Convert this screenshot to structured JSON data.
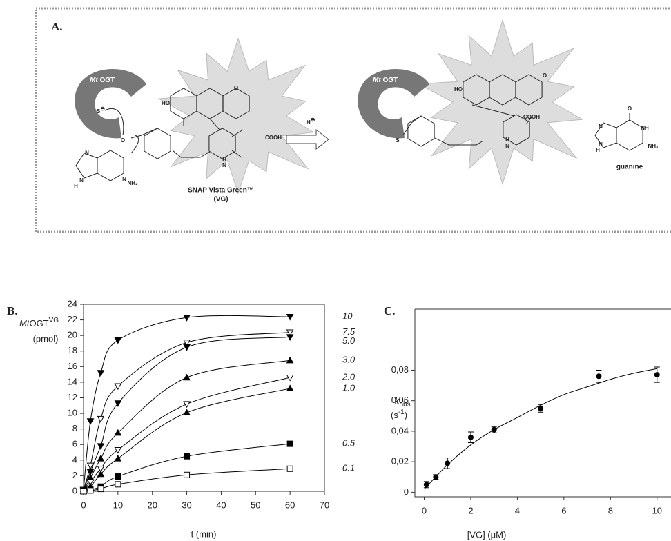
{
  "panel_a": {
    "label": "A.",
    "enzyme_left": {
      "italic": "Mt",
      "text": " OGT"
    },
    "enzyme_right": {
      "italic": "Mt",
      "text": " OGT"
    },
    "thiolate": {
      "text": "S",
      "charge": "⊖"
    },
    "proton": {
      "text": "H",
      "charge": "⊕"
    },
    "substrate_name": "SNAP Vista Green™",
    "substrate_abbr": "(VG)",
    "leaving_group": "guanine",
    "atom_labels": [
      "HO",
      "O",
      "COOH",
      "O",
      "H",
      "N",
      "N",
      "N",
      "N",
      "H",
      "NH₂",
      "HO",
      "O",
      "COOH",
      "S",
      "H",
      "N",
      "O",
      "NH",
      "N",
      "N",
      "H",
      "NH₂"
    ]
  },
  "chart_data": [
    {
      "type": "line",
      "title": "B.",
      "xlabel": "t (min)",
      "ylabel": {
        "italic": "Mt",
        "text": "OGT",
        "sup": "VG",
        "unit": "(pmol)"
      },
      "xlim": [
        0,
        70
      ],
      "xticks": [
        0,
        10,
        20,
        30,
        40,
        50,
        60,
        70
      ],
      "ylim": [
        0,
        24
      ],
      "yticks": [
        0,
        2,
        4,
        6,
        8,
        10,
        12,
        14,
        16,
        18,
        20,
        22,
        24
      ],
      "series": [
        {
          "name": "10",
          "marker": "triangle-down",
          "filled": true,
          "color": "#000000",
          "x": [
            0,
            2,
            5,
            10,
            30,
            60
          ],
          "values": [
            0.2,
            9,
            15.2,
            19.4,
            22.3,
            22.4
          ]
        },
        {
          "name": "7.5",
          "marker": "triangle-down",
          "filled": false,
          "color": "#000000",
          "x": [
            0,
            2,
            5,
            10,
            30,
            60
          ],
          "values": [
            0.2,
            3.3,
            9.3,
            13.5,
            19.1,
            20.4
          ]
        },
        {
          "name": "5.0",
          "marker": "triangle-down",
          "filled": true,
          "color": "#000000",
          "x": [
            0,
            2,
            5,
            10,
            30,
            60
          ],
          "values": [
            0.1,
            2.5,
            5.8,
            11.3,
            18.5,
            19.8
          ]
        },
        {
          "name": "3.0",
          "marker": "triangle-up",
          "filled": true,
          "color": "#000000",
          "x": [
            0,
            2,
            5,
            10,
            30,
            60
          ],
          "values": [
            0.1,
            1.7,
            4.2,
            7.5,
            14.6,
            16.8
          ]
        },
        {
          "name": "2.0",
          "marker": "triangle-down",
          "filled": false,
          "color": "#000000",
          "x": [
            0,
            2,
            5,
            10,
            30,
            60
          ],
          "values": [
            0.1,
            1.2,
            2.9,
            5.3,
            11.2,
            14.6
          ]
        },
        {
          "name": "1.0",
          "marker": "triangle-up",
          "filled": true,
          "color": "#000000",
          "x": [
            0,
            2,
            5,
            10,
            30,
            60
          ],
          "values": [
            0,
            0.6,
            2.2,
            4.2,
            10.1,
            13.2
          ]
        },
        {
          "name": "0.5",
          "marker": "square",
          "filled": true,
          "color": "#000000",
          "x": [
            0,
            2,
            5,
            10,
            30,
            60
          ],
          "values": [
            0,
            0.2,
            0.6,
            1.9,
            4.5,
            6.1
          ]
        },
        {
          "name": "0.1",
          "marker": "square",
          "filled": false,
          "color": "#000000",
          "x": [
            0,
            2,
            5,
            10,
            30,
            60
          ],
          "values": [
            0,
            0.1,
            0.3,
            0.9,
            2.1,
            2.9
          ]
        }
      ]
    },
    {
      "type": "scatter",
      "title": "C.",
      "xlabel": "[VG] (μM)",
      "ylabel": {
        "symbol": "k",
        "sub": "obs",
        "open": "(s",
        "sup": "-1",
        "close": ")"
      },
      "xlim": [
        -0.4,
        10.6
      ],
      "xticks": [
        0,
        2,
        4,
        6,
        8,
        10
      ],
      "ylim": [
        -0.003,
        0.12
      ],
      "yticks": [
        0,
        {
          "value": 0.02,
          "label": "0,02"
        },
        {
          "value": 0.04,
          "label": "0,04"
        },
        {
          "value": 0.06,
          "label": "0,06"
        },
        {
          "value": 0.08,
          "label": "0,08"
        }
      ],
      "series": [
        {
          "color": "#000000",
          "x": [
            0.1,
            0.5,
            1,
            2,
            3,
            5,
            7.5,
            10
          ],
          "values": [
            0.005,
            0.01,
            0.019,
            0.036,
            0.041,
            0.055,
            0.076,
            0.077
          ],
          "errors": [
            0.002,
            0.0015,
            0.0035,
            0.0035,
            0.002,
            0.0025,
            0.004,
            0.005
          ]
        }
      ],
      "fit": {
        "color": "#000000",
        "x": [
          0,
          1,
          2,
          3,
          4,
          5,
          6,
          7,
          8,
          9,
          10
        ],
        "values": [
          0.002,
          0.018,
          0.031,
          0.041,
          0.049,
          0.057,
          0.064,
          0.069,
          0.074,
          0.078,
          0.081
        ]
      }
    }
  ]
}
